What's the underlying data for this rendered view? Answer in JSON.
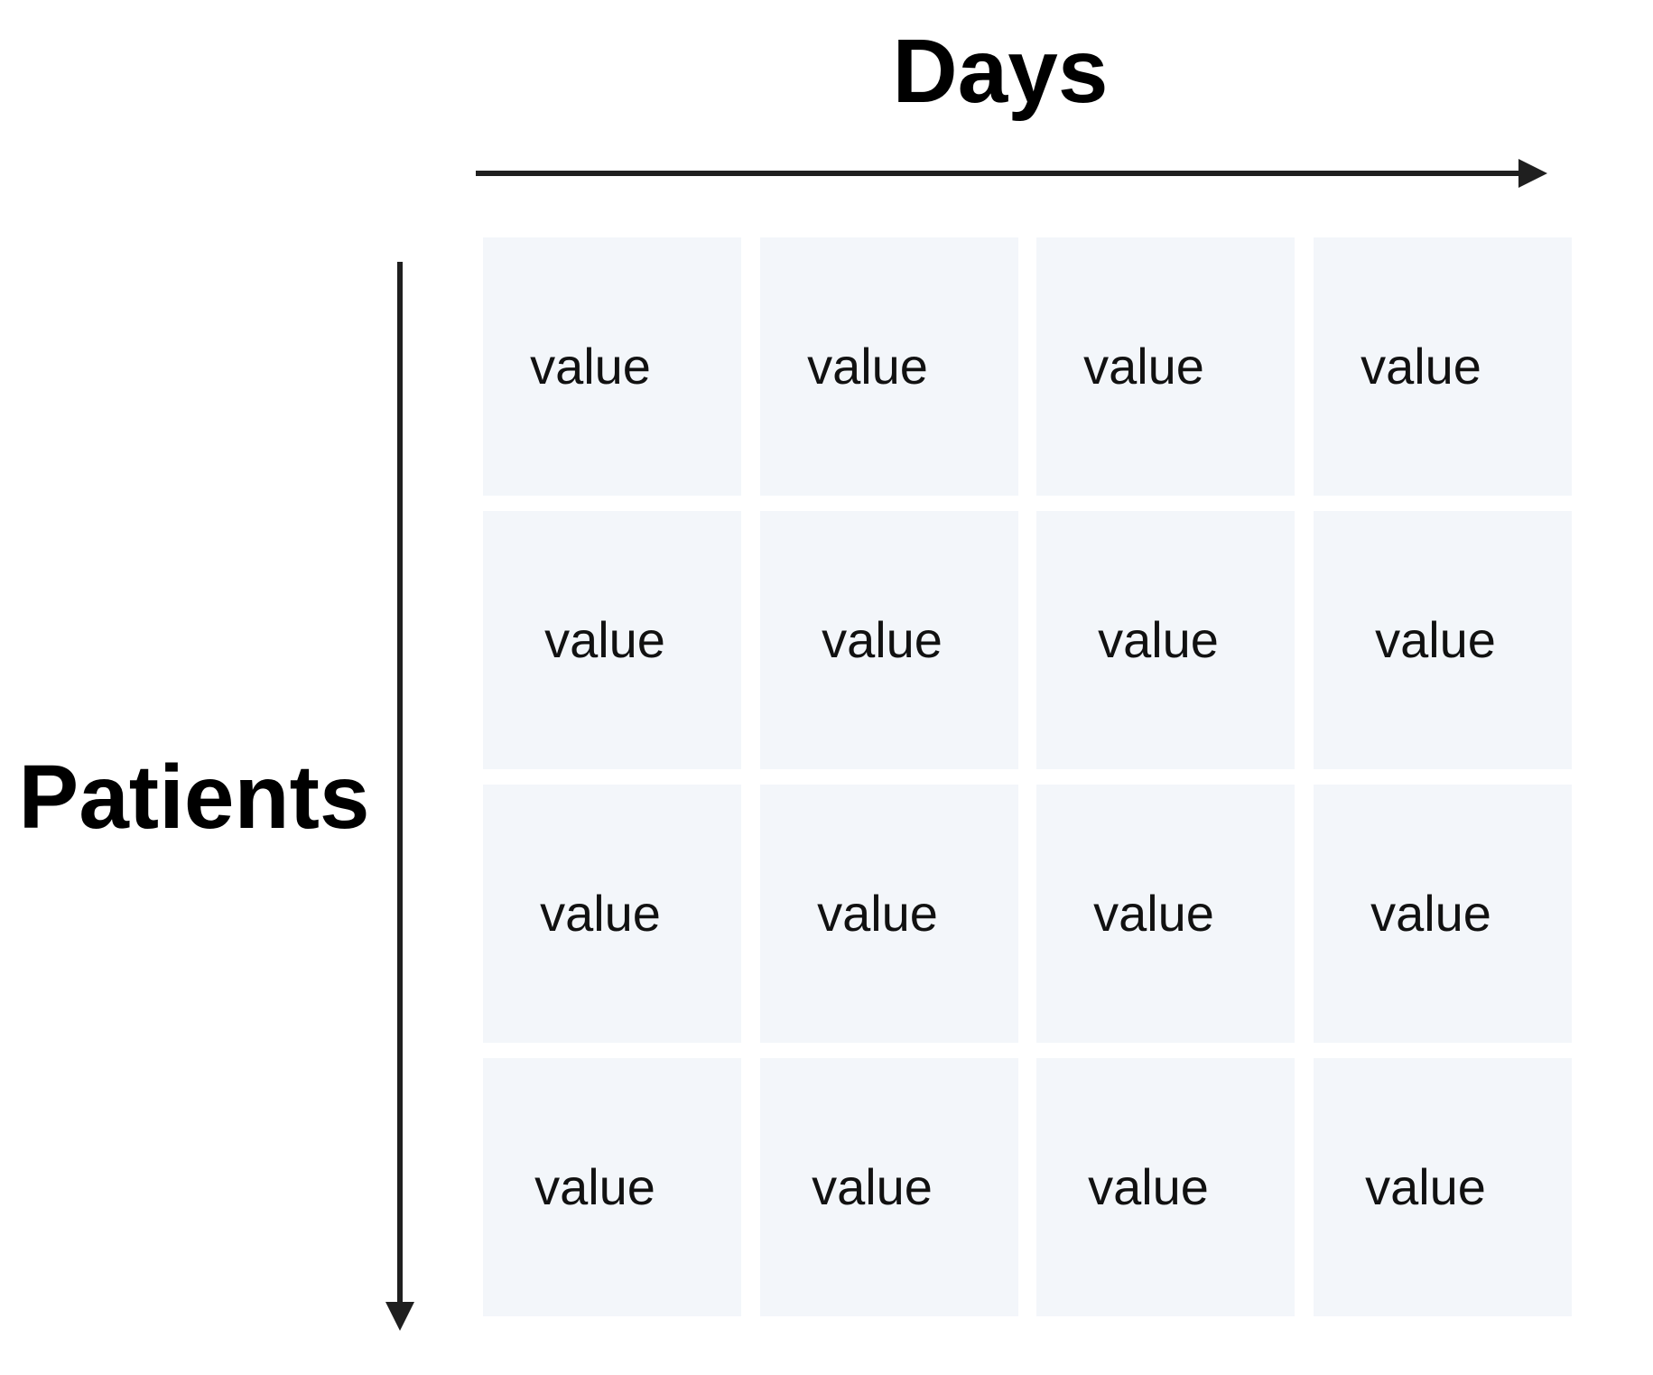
{
  "diagram": {
    "x_axis": {
      "title": "Days",
      "direction": "right",
      "color": "#1f1f1f"
    },
    "y_axis": {
      "title": "Patients",
      "direction": "down",
      "color": "#1f1f1f"
    },
    "grid": {
      "rows": 4,
      "columns": 4,
      "cell_color": "#f3f6fa",
      "cells": [
        [
          "value",
          "value",
          "value",
          "value"
        ],
        [
          "value",
          "value",
          "value",
          "value"
        ],
        [
          "value",
          "value",
          "value",
          "value"
        ],
        [
          "value",
          "value",
          "value",
          "value"
        ]
      ]
    }
  }
}
